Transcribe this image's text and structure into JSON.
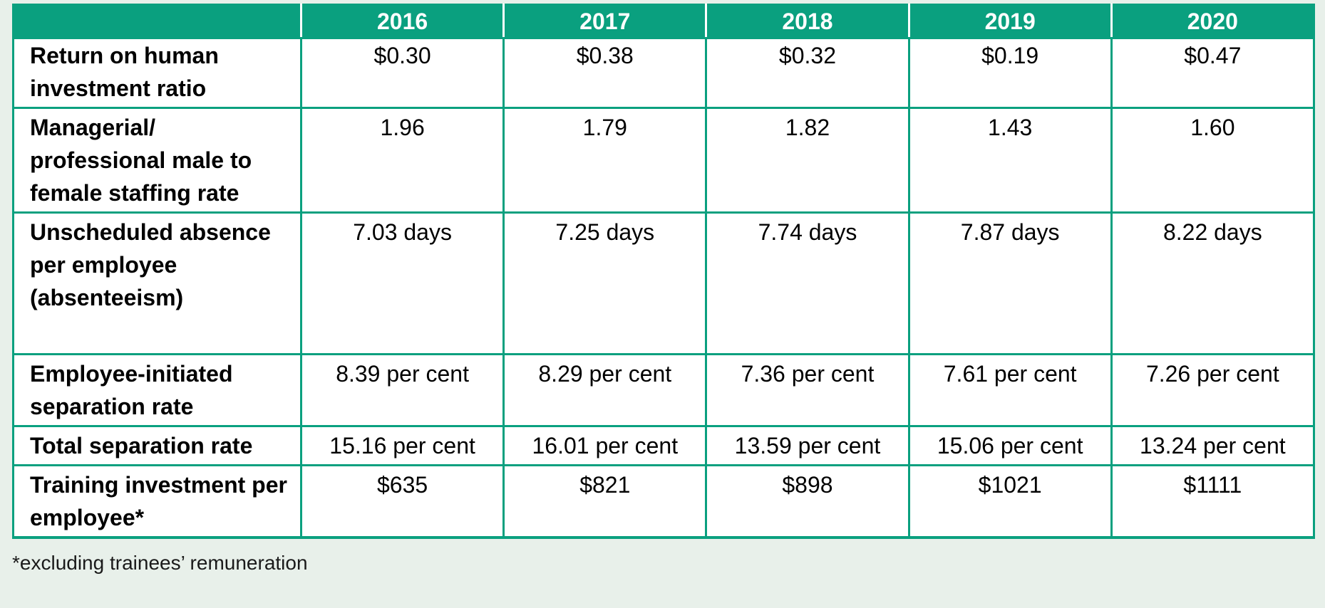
{
  "table": {
    "columns": [
      "",
      "2016",
      "2017",
      "2018",
      "2019",
      "2020"
    ],
    "rows": [
      {
        "label": "Return on human investment ratio",
        "values": [
          "$0.30",
          "$0.38",
          "$0.32",
          "$0.19",
          "$0.47"
        ]
      },
      {
        "label": "Managerial/ professional male to female staffing rate",
        "values": [
          "1.96",
          "1.79",
          "1.82",
          "1.43",
          "1.60"
        ]
      },
      {
        "label": "Unscheduled absence per employee (absenteeism)",
        "values": [
          "7.03 days",
          "7.25 days",
          "7.74 days",
          "7.87 days",
          "8.22 days"
        ]
      },
      {
        "label": "Employee-initiated separation rate",
        "values": [
          "8.39 per cent",
          "8.29 per cent",
          "7.36 per cent",
          "7.61 per cent",
          "7.26 per cent"
        ]
      },
      {
        "label": "Total separation rate",
        "values": [
          "15.16 per cent",
          "16.01 per cent",
          "13.59 per cent",
          "15.06 per cent",
          "13.24 per cent"
        ]
      },
      {
        "label": "Training investment per employee*",
        "values": [
          "$635",
          "$821",
          "$898",
          "$1021",
          "$1111"
        ]
      }
    ]
  },
  "footnote": "*excluding trainees’ remuneration",
  "colors": {
    "header_bg": "#0aa07f",
    "page_bg": "#e8f0ea"
  }
}
